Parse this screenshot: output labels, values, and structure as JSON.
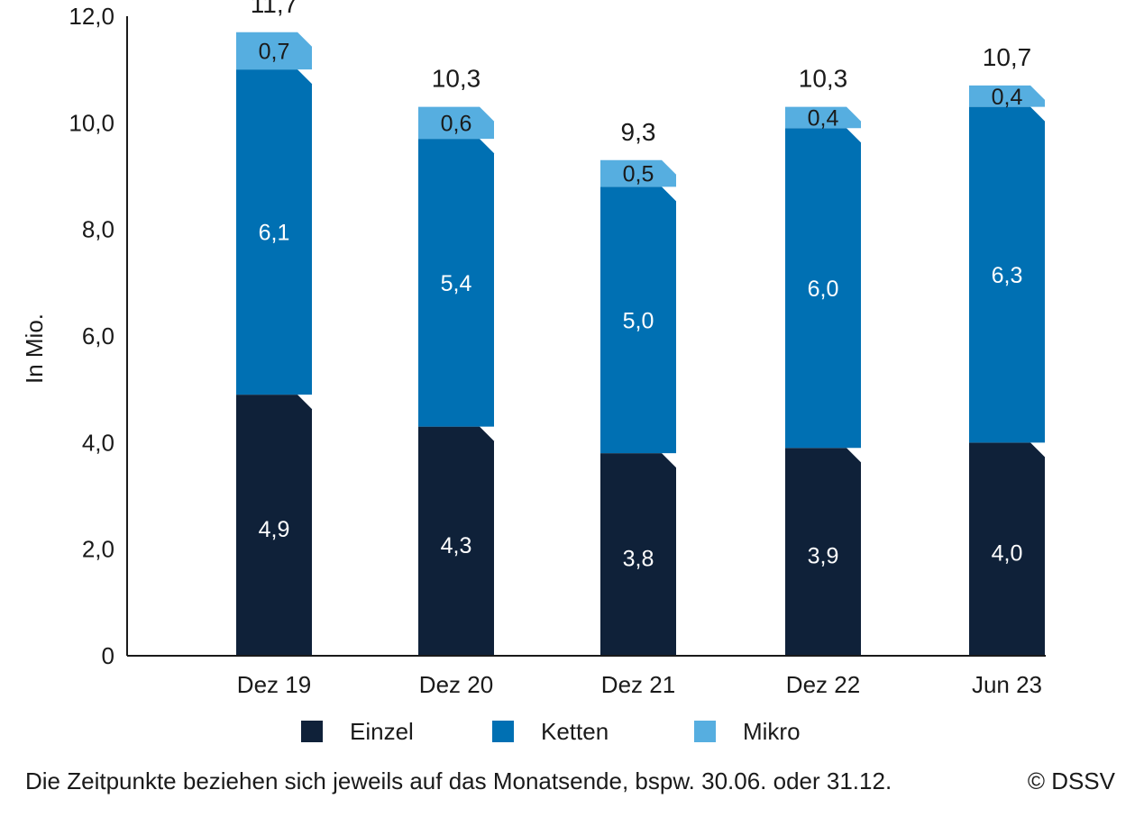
{
  "chart_data": {
    "type": "bar",
    "stacked": true,
    "categories": [
      "Dez 19",
      "Dez 20",
      "Dez 21",
      "Dez 22",
      "Jun 23"
    ],
    "series": [
      {
        "name": "Einzel",
        "color": "#0f2139",
        "values": [
          4.9,
          4.3,
          3.8,
          3.9,
          4.0
        ]
      },
      {
        "name": "Ketten",
        "color": "#0070b3",
        "values": [
          6.1,
          5.4,
          5.0,
          6.0,
          6.3
        ]
      },
      {
        "name": "Mikro",
        "color": "#56aee0",
        "values": [
          0.7,
          0.6,
          0.5,
          0.4,
          0.4
        ]
      }
    ],
    "segment_labels": [
      [
        "4,9",
        "6,1",
        "0,7"
      ],
      [
        "4,3",
        "5,4",
        "0,6"
      ],
      [
        "3,8",
        "5,0",
        "0,5"
      ],
      [
        "3,9",
        "6,0",
        "0,4"
      ],
      [
        "4,0",
        "6,3",
        "0,4"
      ]
    ],
    "totals": [
      11.7,
      10.3,
      9.3,
      10.3,
      10.7
    ],
    "total_labels": [
      "11,7",
      "10,3",
      "9,3",
      "10,3",
      "10,7"
    ],
    "ylabel": "In Mio.",
    "xlabel": "",
    "ylim": [
      0,
      12
    ],
    "y_ticks": [
      0,
      2,
      4,
      6,
      8,
      10,
      12
    ],
    "y_tick_labels": [
      "0",
      "2,0",
      "4,0",
      "6,0",
      "8,0",
      "10,0",
      "12,0"
    ],
    "grid": false,
    "legend_position": "bottom"
  },
  "legend": {
    "items": [
      {
        "label": "Einzel",
        "color": "#0f2139"
      },
      {
        "label": "Ketten",
        "color": "#0070b3"
      },
      {
        "label": "Mikro",
        "color": "#56aee0"
      }
    ]
  },
  "footnote": "Die Zeitpunkte beziehen sich jeweils auf das Monatsende, bspw. 30.06. oder 31.12.",
  "copyright": "© DSSV"
}
